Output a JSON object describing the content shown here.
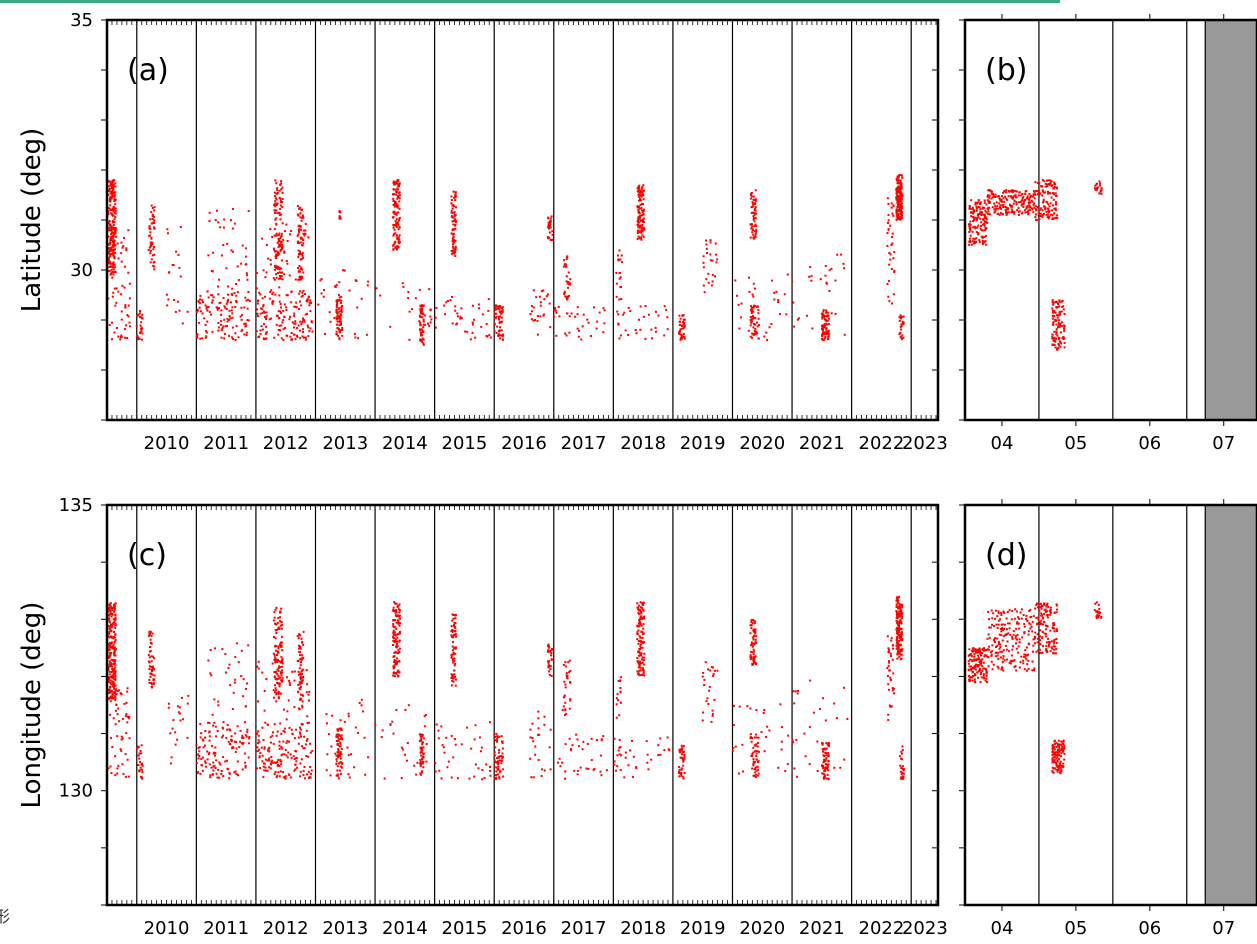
{
  "colors": {
    "accent_bar": "#3aa883",
    "point": "#ff0000",
    "shade": "#999999",
    "axis": "#000000"
  },
  "edge_fragment": "形",
  "chart_data": [
    {
      "type": "scatter",
      "panel_label": "(a)",
      "ylabel": "Latitude (deg)",
      "ylim": [
        27,
        35
      ],
      "yticks": [
        35,
        30
      ],
      "xlim": [
        2009.5,
        2023.45
      ],
      "year_labels": [
        "2010",
        "2011",
        "2012",
        "2013",
        "2014",
        "2015",
        "2016",
        "2017",
        "2018",
        "2019",
        "2020",
        "2021",
        "2022",
        "2023"
      ],
      "clusters": [
        {
          "t0": 2009.52,
          "t1": 2009.65,
          "y0": 29.9,
          "y1": 31.8,
          "n": 220
        },
        {
          "t0": 2009.52,
          "t1": 2009.9,
          "y0": 28.6,
          "y1": 30.8,
          "n": 60
        },
        {
          "t0": 2010.2,
          "t1": 2010.3,
          "y0": 30.0,
          "y1": 31.3,
          "n": 50
        },
        {
          "t0": 2010.0,
          "t1": 2010.1,
          "y0": 28.6,
          "y1": 29.2,
          "n": 25
        },
        {
          "t0": 2010.5,
          "t1": 2010.9,
          "y0": 28.8,
          "y1": 31.0,
          "n": 20
        },
        {
          "t0": 2011.0,
          "t1": 2011.9,
          "y0": 28.6,
          "y1": 29.6,
          "n": 120
        },
        {
          "t0": 2011.2,
          "t1": 2011.9,
          "y0": 29.2,
          "y1": 31.3,
          "n": 45
        },
        {
          "t0": 2012.0,
          "t1": 2012.95,
          "y0": 28.6,
          "y1": 29.6,
          "n": 160
        },
        {
          "t0": 2012.3,
          "t1": 2012.45,
          "y0": 29.8,
          "y1": 31.8,
          "n": 120
        },
        {
          "t0": 2012.7,
          "t1": 2012.8,
          "y0": 29.8,
          "y1": 31.3,
          "n": 70
        },
        {
          "t0": 2012.0,
          "t1": 2012.9,
          "y0": 29.5,
          "y1": 31.0,
          "n": 40
        },
        {
          "t0": 2013.35,
          "t1": 2013.45,
          "y0": 28.6,
          "y1": 29.5,
          "n": 70
        },
        {
          "t0": 2013.4,
          "t1": 2013.42,
          "y0": 31.0,
          "y1": 31.3,
          "n": 10
        },
        {
          "t0": 2013.0,
          "t1": 2013.9,
          "y0": 28.6,
          "y1": 30.0,
          "n": 30
        },
        {
          "t0": 2014.3,
          "t1": 2014.42,
          "y0": 30.4,
          "y1": 31.8,
          "n": 120
        },
        {
          "t0": 2014.75,
          "t1": 2014.82,
          "y0": 28.5,
          "y1": 29.3,
          "n": 50
        },
        {
          "t0": 2014.0,
          "t1": 2014.95,
          "y0": 28.6,
          "y1": 29.8,
          "n": 25
        },
        {
          "t0": 2015.28,
          "t1": 2015.36,
          "y0": 30.2,
          "y1": 31.6,
          "n": 70
        },
        {
          "t0": 2015.0,
          "t1": 2015.95,
          "y0": 28.6,
          "y1": 29.5,
          "n": 40
        },
        {
          "t0": 2016.0,
          "t1": 2016.15,
          "y0": 28.6,
          "y1": 29.3,
          "n": 60
        },
        {
          "t0": 2016.9,
          "t1": 2016.98,
          "y0": 30.6,
          "y1": 31.2,
          "n": 30
        },
        {
          "t0": 2016.6,
          "t1": 2016.95,
          "y0": 28.6,
          "y1": 29.6,
          "n": 25
        },
        {
          "t0": 2017.15,
          "t1": 2017.28,
          "y0": 29.4,
          "y1": 30.3,
          "n": 30
        },
        {
          "t0": 2017.0,
          "t1": 2017.9,
          "y0": 28.6,
          "y1": 29.3,
          "n": 35
        },
        {
          "t0": 2018.4,
          "t1": 2018.52,
          "y0": 30.6,
          "y1": 31.7,
          "n": 120
        },
        {
          "t0": 2018.05,
          "t1": 2018.15,
          "y0": 29.0,
          "y1": 30.4,
          "n": 20
        },
        {
          "t0": 2018.0,
          "t1": 2018.95,
          "y0": 28.6,
          "y1": 29.3,
          "n": 30
        },
        {
          "t0": 2019.1,
          "t1": 2019.2,
          "y0": 28.6,
          "y1": 29.1,
          "n": 40
        },
        {
          "t0": 2019.5,
          "t1": 2019.75,
          "y0": 29.5,
          "y1": 30.6,
          "n": 25
        },
        {
          "t0": 2020.3,
          "t1": 2020.4,
          "y0": 30.6,
          "y1": 31.6,
          "n": 60
        },
        {
          "t0": 2020.3,
          "t1": 2020.45,
          "y0": 28.6,
          "y1": 29.3,
          "n": 50
        },
        {
          "t0": 2020.0,
          "t1": 2020.95,
          "y0": 28.6,
          "y1": 30.0,
          "n": 30
        },
        {
          "t0": 2021.5,
          "t1": 2021.62,
          "y0": 28.6,
          "y1": 29.2,
          "n": 70
        },
        {
          "t0": 2021.0,
          "t1": 2021.95,
          "y0": 28.6,
          "y1": 30.4,
          "n": 30
        },
        {
          "t0": 2022.6,
          "t1": 2022.72,
          "y0": 29.3,
          "y1": 31.5,
          "n": 35
        },
        {
          "t0": 2022.75,
          "t1": 2022.85,
          "y0": 31.0,
          "y1": 31.9,
          "n": 170
        },
        {
          "t0": 2022.8,
          "t1": 2022.88,
          "y0": 28.6,
          "y1": 29.1,
          "n": 25
        }
      ]
    },
    {
      "type": "scatter",
      "panel_label": "(b)",
      "ylim": [
        27,
        35
      ],
      "xlim": [
        3.5,
        7.45
      ],
      "month_labels": [
        "04",
        "05",
        "06",
        "07"
      ],
      "shaded_from": 6.75,
      "clusters": [
        {
          "t0": 3.55,
          "t1": 3.8,
          "y0": 30.5,
          "y1": 31.4,
          "n": 140
        },
        {
          "t0": 3.8,
          "t1": 4.45,
          "y0": 31.1,
          "y1": 31.6,
          "n": 200
        },
        {
          "t0": 4.45,
          "t1": 4.75,
          "y0": 31.0,
          "y1": 31.8,
          "n": 130
        },
        {
          "t0": 5.25,
          "t1": 5.35,
          "y0": 31.5,
          "y1": 31.8,
          "n": 20
        },
        {
          "t0": 4.68,
          "t1": 4.85,
          "y0": 28.4,
          "y1": 29.4,
          "n": 110
        }
      ]
    },
    {
      "type": "scatter",
      "panel_label": "(c)",
      "ylabel": "Longitude (deg)",
      "ylim": [
        128,
        135
      ],
      "yticks": [
        135,
        130
      ],
      "xlim": [
        2009.5,
        2023.45
      ],
      "year_labels": [
        "2010",
        "2011",
        "2012",
        "2013",
        "2014",
        "2015",
        "2016",
        "2017",
        "2018",
        "2019",
        "2020",
        "2021",
        "2022",
        "2023"
      ],
      "clusters": [
        {
          "t0": 2009.52,
          "t1": 2009.65,
          "y0": 131.6,
          "y1": 133.3,
          "n": 220
        },
        {
          "t0": 2009.52,
          "t1": 2009.9,
          "y0": 130.2,
          "y1": 131.8,
          "n": 60
        },
        {
          "t0": 2010.2,
          "t1": 2010.3,
          "y0": 131.8,
          "y1": 132.8,
          "n": 50
        },
        {
          "t0": 2010.0,
          "t1": 2010.1,
          "y0": 130.2,
          "y1": 130.8,
          "n": 25
        },
        {
          "t0": 2010.5,
          "t1": 2010.9,
          "y0": 130.4,
          "y1": 131.7,
          "n": 20
        },
        {
          "t0": 2011.0,
          "t1": 2011.9,
          "y0": 130.2,
          "y1": 131.2,
          "n": 120
        },
        {
          "t0": 2011.2,
          "t1": 2011.9,
          "y0": 130.8,
          "y1": 132.6,
          "n": 45
        },
        {
          "t0": 2012.0,
          "t1": 2012.95,
          "y0": 130.2,
          "y1": 131.2,
          "n": 160
        },
        {
          "t0": 2012.3,
          "t1": 2012.45,
          "y0": 131.6,
          "y1": 133.2,
          "n": 120
        },
        {
          "t0": 2012.7,
          "t1": 2012.8,
          "y0": 131.4,
          "y1": 132.8,
          "n": 70
        },
        {
          "t0": 2012.0,
          "t1": 2012.9,
          "y0": 131.0,
          "y1": 132.3,
          "n": 40
        },
        {
          "t0": 2013.35,
          "t1": 2013.45,
          "y0": 130.2,
          "y1": 131.1,
          "n": 70
        },
        {
          "t0": 2013.0,
          "t1": 2013.9,
          "y0": 130.2,
          "y1": 131.6,
          "n": 30
        },
        {
          "t0": 2014.3,
          "t1": 2014.42,
          "y0": 132.0,
          "y1": 133.3,
          "n": 120
        },
        {
          "t0": 2014.75,
          "t1": 2014.82,
          "y0": 130.2,
          "y1": 131.0,
          "n": 50
        },
        {
          "t0": 2014.0,
          "t1": 2014.95,
          "y0": 130.2,
          "y1": 131.5,
          "n": 25
        },
        {
          "t0": 2015.28,
          "t1": 2015.36,
          "y0": 131.8,
          "y1": 133.1,
          "n": 70
        },
        {
          "t0": 2015.0,
          "t1": 2015.95,
          "y0": 130.2,
          "y1": 131.2,
          "n": 40
        },
        {
          "t0": 2016.0,
          "t1": 2016.15,
          "y0": 130.2,
          "y1": 131.0,
          "n": 60
        },
        {
          "t0": 2016.9,
          "t1": 2016.98,
          "y0": 132.0,
          "y1": 132.6,
          "n": 30
        },
        {
          "t0": 2016.6,
          "t1": 2016.95,
          "y0": 130.2,
          "y1": 131.4,
          "n": 25
        },
        {
          "t0": 2017.15,
          "t1": 2017.28,
          "y0": 131.3,
          "y1": 132.3,
          "n": 30
        },
        {
          "t0": 2017.0,
          "t1": 2017.9,
          "y0": 130.2,
          "y1": 131.0,
          "n": 35
        },
        {
          "t0": 2018.4,
          "t1": 2018.52,
          "y0": 132.0,
          "y1": 133.3,
          "n": 120
        },
        {
          "t0": 2018.05,
          "t1": 2018.15,
          "y0": 130.6,
          "y1": 132.0,
          "n": 20
        },
        {
          "t0": 2018.0,
          "t1": 2018.95,
          "y0": 130.2,
          "y1": 131.0,
          "n": 30
        },
        {
          "t0": 2019.1,
          "t1": 2019.2,
          "y0": 130.2,
          "y1": 130.8,
          "n": 40
        },
        {
          "t0": 2019.5,
          "t1": 2019.75,
          "y0": 131.2,
          "y1": 132.3,
          "n": 25
        },
        {
          "t0": 2020.3,
          "t1": 2020.4,
          "y0": 132.2,
          "y1": 133.0,
          "n": 60
        },
        {
          "t0": 2020.3,
          "t1": 2020.45,
          "y0": 130.2,
          "y1": 131.0,
          "n": 50
        },
        {
          "t0": 2020.0,
          "t1": 2020.95,
          "y0": 130.2,
          "y1": 131.6,
          "n": 30
        },
        {
          "t0": 2021.5,
          "t1": 2021.62,
          "y0": 130.2,
          "y1": 130.9,
          "n": 70
        },
        {
          "t0": 2021.0,
          "t1": 2021.95,
          "y0": 130.2,
          "y1": 132.0,
          "n": 30
        },
        {
          "t0": 2022.6,
          "t1": 2022.72,
          "y0": 130.9,
          "y1": 132.8,
          "n": 35
        },
        {
          "t0": 2022.75,
          "t1": 2022.85,
          "y0": 132.3,
          "y1": 133.4,
          "n": 170
        },
        {
          "t0": 2022.8,
          "t1": 2022.88,
          "y0": 130.2,
          "y1": 130.8,
          "n": 25
        }
      ]
    },
    {
      "type": "scatter",
      "panel_label": "(d)",
      "ylim": [
        128,
        135
      ],
      "xlim": [
        3.5,
        7.45
      ],
      "month_labels": [
        "04",
        "05",
        "06",
        "07"
      ],
      "shaded_from": 6.75,
      "clusters": [
        {
          "t0": 3.55,
          "t1": 3.8,
          "y0": 131.9,
          "y1": 132.5,
          "n": 140
        },
        {
          "t0": 3.8,
          "t1": 4.45,
          "y0": 132.1,
          "y1": 133.2,
          "n": 200
        },
        {
          "t0": 4.45,
          "t1": 4.75,
          "y0": 132.4,
          "y1": 133.3,
          "n": 130
        },
        {
          "t0": 5.25,
          "t1": 5.35,
          "y0": 133.0,
          "y1": 133.3,
          "n": 20
        },
        {
          "t0": 4.68,
          "t1": 4.85,
          "y0": 130.3,
          "y1": 130.9,
          "n": 110
        }
      ]
    }
  ]
}
